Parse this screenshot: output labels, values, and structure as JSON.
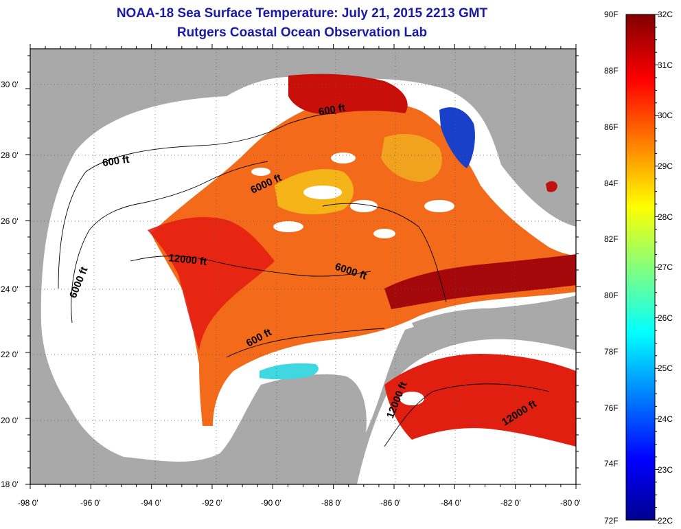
{
  "map": {
    "title": "NOAA-18 Sea Surface Temperature:  July 21, 2015 2213 GMT",
    "subtitle": "Rutgers Coastal Ocean Observation Lab",
    "lon_ticks": [
      "-98 0'",
      "-96 0'",
      "-94 0'",
      "-92 0'",
      "-90 0'",
      "-88 0'",
      "-86 0'",
      "-84 0'",
      "-82 0'",
      "-80 0'"
    ],
    "lat_ticks": [
      "30 0'",
      "28 0'",
      "26 0'",
      "24 0'",
      "22 0'",
      "20 0'",
      "18 0'"
    ],
    "lon_range": [
      -98,
      -80
    ],
    "lat_range": [
      18,
      31.3
    ],
    "contour_labels": [
      "600 ft",
      "600 ft",
      "6000 ft",
      "6000 ft",
      "12000 ft",
      "6000 ft",
      "600 ft",
      "12000 ft",
      "12000 ft"
    ],
    "land_color": "#a9a9a9",
    "nodata_color": "#ffffff"
  },
  "colorbar": {
    "fahrenheit_labels": [
      "90F",
      "88F",
      "86F",
      "84F",
      "82F",
      "80F",
      "78F",
      "76F",
      "74F",
      "72F"
    ],
    "celsius_labels": [
      "32C",
      "31C",
      "30C",
      "29C",
      "28C",
      "27C",
      "26C",
      "25C",
      "24C",
      "23C",
      "22C"
    ],
    "range_c": [
      22,
      32
    ],
    "colormap": "jet"
  }
}
